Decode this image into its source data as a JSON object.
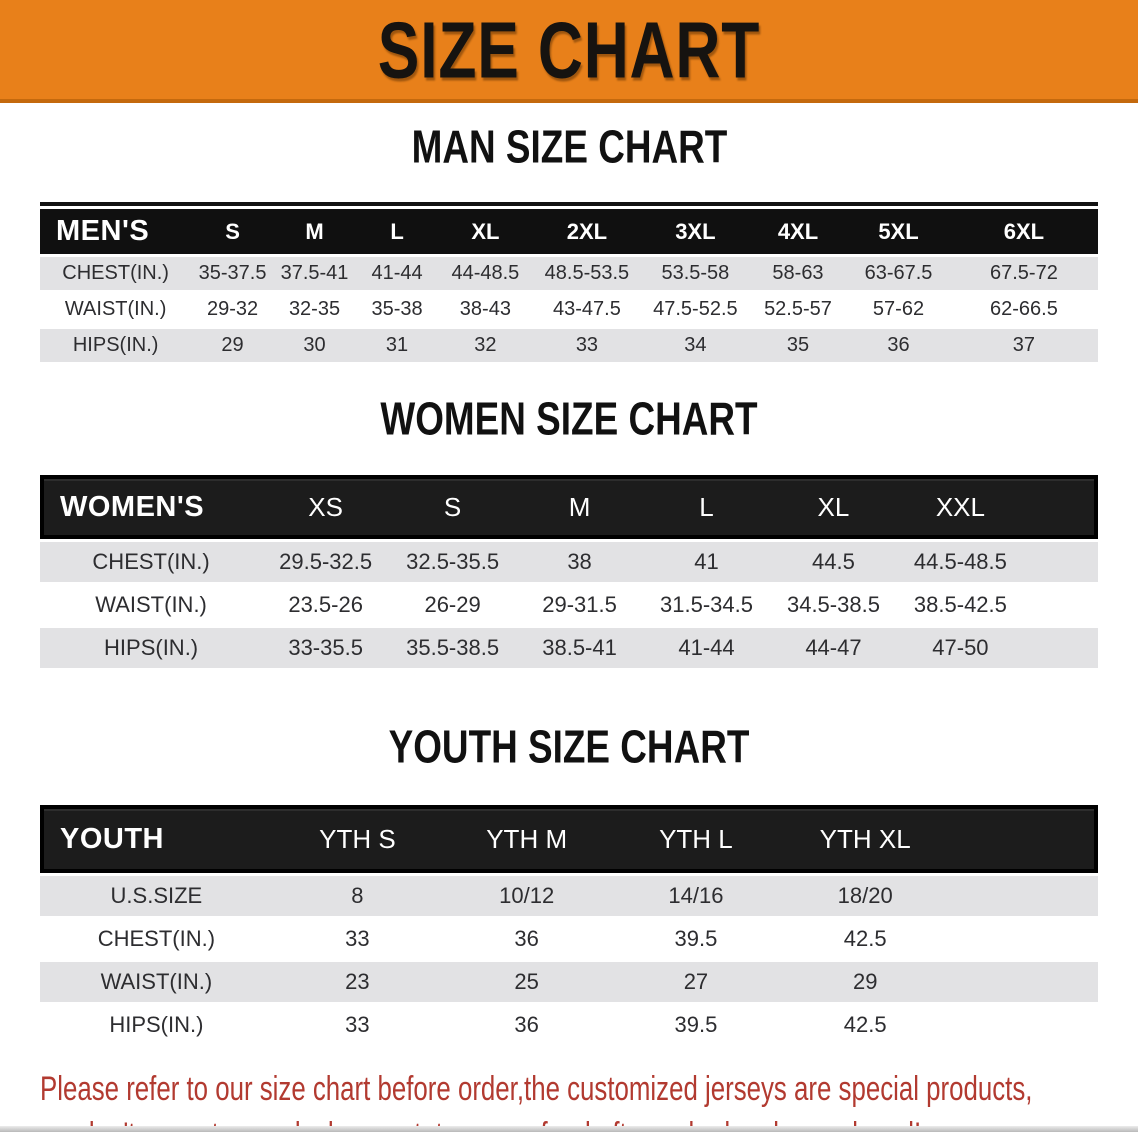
{
  "banner": {
    "title": "SIZE CHART",
    "bg_color": "#E8801A",
    "text_color": "#161310"
  },
  "colors": {
    "stripe_gray": "#E2E2E4",
    "header_black": "#101010",
    "disclaimer_red": "#B23A30"
  },
  "sections": {
    "men": {
      "heading": "MAN SIZE CHART",
      "header": [
        "MEN'S",
        "S",
        "M",
        "L",
        "XL",
        "2XL",
        "3XL",
        "4XL",
        "5XL",
        "6XL"
      ],
      "rows": [
        {
          "label": "CHEST(IN.)",
          "values": [
            "35-37.5",
            "37.5-41",
            "41-44",
            "44-48.5",
            "48.5-53.5",
            "53.5-58",
            "58-63",
            "63-67.5",
            "67.5-72"
          ]
        },
        {
          "label": "WAIST(IN.)",
          "values": [
            "29-32",
            "32-35",
            "35-38",
            "38-43",
            "43-47.5",
            "47.5-52.5",
            "52.5-57",
            "57-62",
            "62-66.5"
          ]
        },
        {
          "label": "HIPS(IN.)",
          "values": [
            "29",
            "30",
            "31",
            "32",
            "33",
            "34",
            "35",
            "36",
            "37"
          ]
        }
      ]
    },
    "women": {
      "heading": "WOMEN SIZE CHART",
      "header": [
        "WOMEN'S",
        "XS",
        "S",
        "M",
        "L",
        "XL",
        "XXL"
      ],
      "rows": [
        {
          "label": "CHEST(IN.)",
          "values": [
            "29.5-32.5",
            "32.5-35.5",
            "38",
            "41",
            "44.5",
            "44.5-48.5"
          ]
        },
        {
          "label": "WAIST(IN.)",
          "values": [
            "23.5-26",
            "26-29",
            "29-31.5",
            "31.5-34.5",
            "34.5-38.5",
            "38.5-42.5"
          ]
        },
        {
          "label": "HIPS(IN.)",
          "values": [
            "33-35.5",
            "35.5-38.5",
            "38.5-41",
            "41-44",
            "44-47",
            "47-50"
          ]
        }
      ]
    },
    "youth": {
      "heading": "YOUTH SIZE CHART",
      "header": [
        "YOUTH",
        "YTH S",
        "YTH M",
        "YTH L",
        "YTH XL"
      ],
      "rows": [
        {
          "label": "U.S.SIZE",
          "values": [
            "8",
            "10/12",
            "14/16",
            "18/20"
          ]
        },
        {
          "label": "CHEST(IN.)",
          "values": [
            "33",
            "36",
            "39.5",
            "42.5"
          ]
        },
        {
          "label": "WAIST(IN.)",
          "values": [
            "23",
            "25",
            "27",
            "29"
          ]
        },
        {
          "label": "HIPS(IN.)",
          "values": [
            "33",
            "36",
            "39.5",
            "42.5"
          ]
        }
      ]
    }
  },
  "footer": {
    "line1": "Please refer to our size chart before order,the customized jerseys are special products,",
    "line2": "we don't accept cancel, change, teturn or refund after order has been placed!"
  }
}
